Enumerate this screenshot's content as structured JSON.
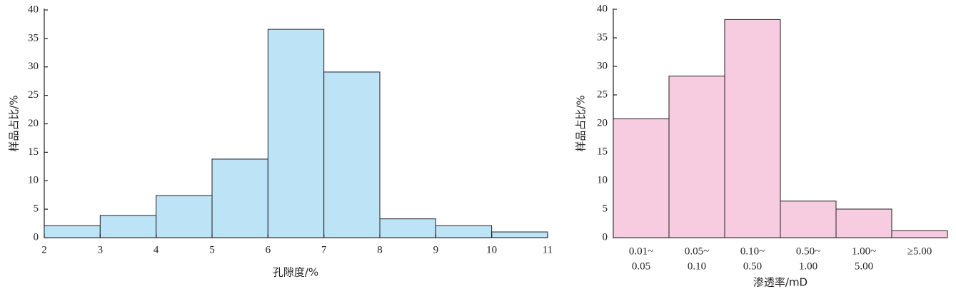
{
  "chart_data": [
    {
      "type": "histogram",
      "y_label": "样品占比/%",
      "x_label": "孔隙度/%",
      "bins": [
        2,
        3,
        4,
        5,
        6,
        7,
        8,
        9,
        10,
        11
      ],
      "values": [
        2.1,
        3.9,
        7.4,
        13.8,
        36.6,
        29.1,
        3.3,
        2.1,
        1.0
      ],
      "color": "#bde3f7",
      "xlim": [
        2,
        11
      ],
      "xticks": [
        2,
        3,
        4,
        5,
        6,
        7,
        8,
        9,
        10,
        11
      ],
      "ylim": [
        0,
        40
      ],
      "yticks": [
        0,
        5,
        10,
        15,
        20,
        25,
        30,
        35,
        40
      ]
    },
    {
      "type": "bar",
      "y_label": "样品占比/%",
      "x_label": "渗透率/mD",
      "categories": [
        [
          "0.01~",
          "0.05"
        ],
        [
          "0.05~",
          "0.10"
        ],
        [
          "0.10~",
          "0.50"
        ],
        [
          "0.50~",
          "1.00"
        ],
        [
          "1.00~",
          "5.00"
        ],
        [
          "≥5.00"
        ]
      ],
      "values": [
        20.8,
        28.3,
        38.2,
        6.4,
        5.0,
        1.2
      ],
      "color": "#f7cce0",
      "ylim": [
        0,
        40
      ],
      "yticks": [
        0,
        5,
        10,
        15,
        20,
        25,
        30,
        35,
        40
      ]
    }
  ]
}
